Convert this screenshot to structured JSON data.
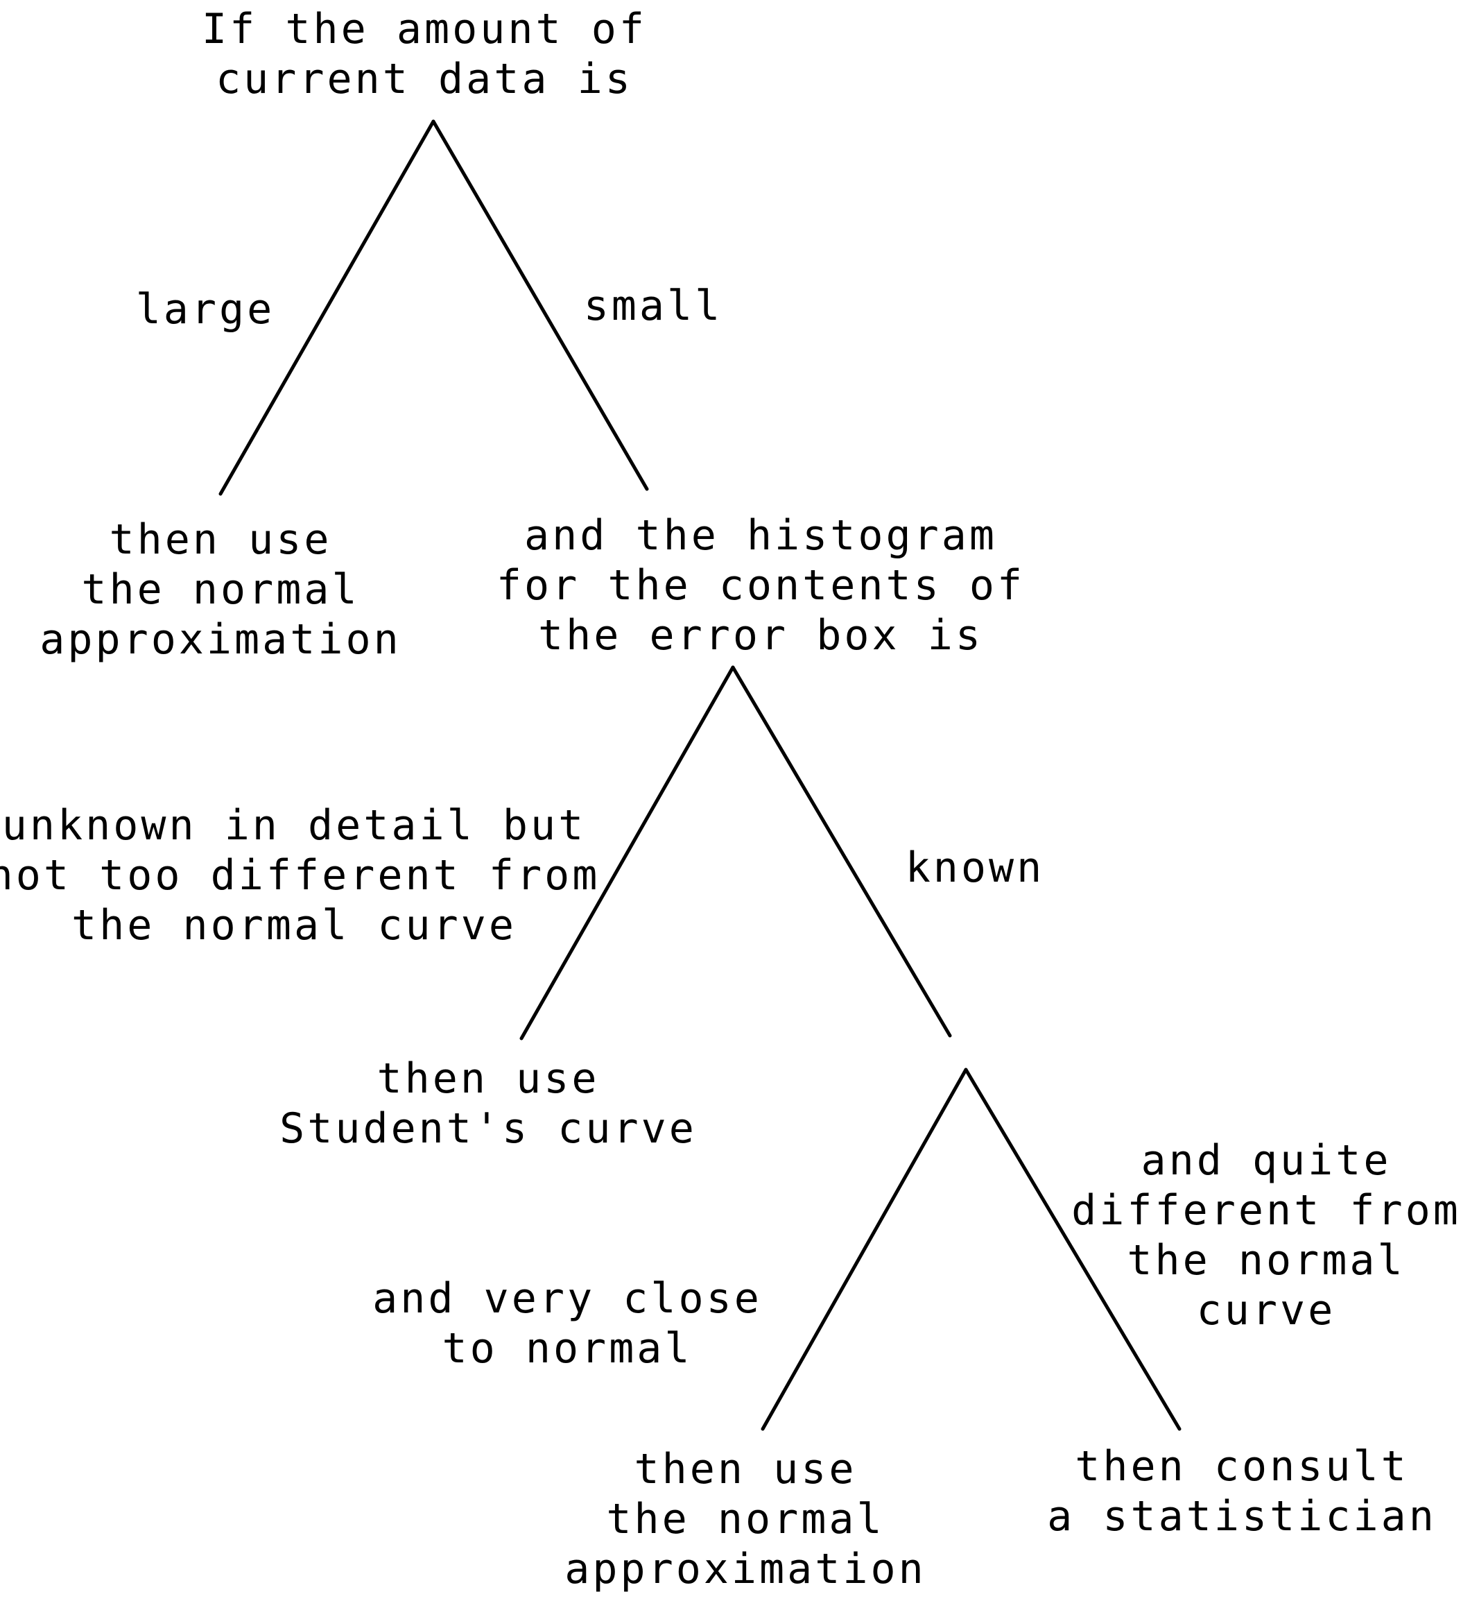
{
  "root": {
    "question": "If the amount of\ncurrent data is"
  },
  "branch_large": {
    "label": "large",
    "outcome": "then use\nthe normal\napproximation"
  },
  "branch_small": {
    "label": "small",
    "question": "and the histogram\nfor the contents of\nthe error box is"
  },
  "branch_unknown": {
    "label": "unknown in detail but\nnot too different from\nthe normal curve",
    "outcome": "then use\nStudent's curve"
  },
  "branch_known": {
    "label": "known"
  },
  "branch_close_to_normal": {
    "label": "and very close\nto normal",
    "outcome": "then use\nthe normal\napproximation"
  },
  "branch_different_from_normal": {
    "label": "and quite\ndifferent from\nthe normal\ncurve",
    "outcome": "then consult\na statistician"
  }
}
